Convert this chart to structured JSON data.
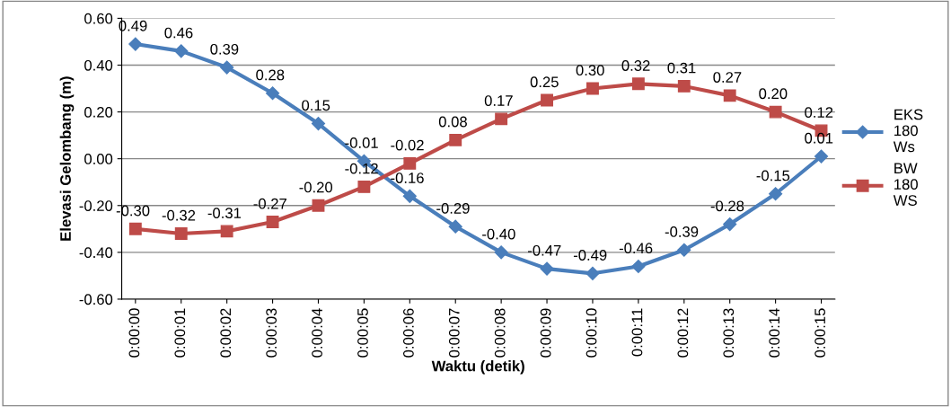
{
  "chart_data": {
    "type": "line",
    "xlabel": "Waktu (detik)",
    "ylabel": "Elevasi Gelombang (m)",
    "categories": [
      "0:00:00",
      "0:00:01",
      "0:00:02",
      "0:00:03",
      "0:00:04",
      "0:00:05",
      "0:00:06",
      "0:00:07",
      "0:00:08",
      "0:00:09",
      "0:00:10",
      "0:00:11",
      "0:00:12",
      "0:00:13",
      "0:00:14",
      "0:00:15"
    ],
    "series": [
      {
        "name": "EKS 180 Ws",
        "color": "#4a7ebb",
        "marker": "diamond",
        "values": [
          0.49,
          0.46,
          0.39,
          0.28,
          0.15,
          -0.01,
          -0.16,
          -0.29,
          -0.4,
          -0.47,
          -0.49,
          -0.46,
          -0.39,
          -0.28,
          -0.15,
          0.01
        ],
        "value_labels": [
          "0.49",
          "0.46",
          "0.39",
          "0.28",
          "0.15",
          "-0.01",
          "-0.16",
          "-0.29",
          "-0.40",
          "-0.47",
          "-0.49",
          "-0.46",
          "-0.39",
          "-0.28",
          "-0.15",
          "0.01"
        ]
      },
      {
        "name": "BW 180 WS",
        "color": "#be4b48",
        "marker": "square",
        "values": [
          -0.3,
          -0.32,
          -0.31,
          -0.27,
          -0.2,
          -0.12,
          -0.02,
          0.08,
          0.17,
          0.25,
          0.3,
          0.32,
          0.31,
          0.27,
          0.2,
          0.12
        ],
        "value_labels": [
          "-0.30",
          "-0.32",
          "-0.31",
          "-0.27",
          "-0.20",
          "-0.12",
          "-0.02",
          "0.08",
          "0.17",
          "0.25",
          "0.30",
          "0.32",
          "0.31",
          "0.27",
          "0.20",
          "0.12"
        ]
      }
    ],
    "ylim": [
      -0.6,
      0.6
    ],
    "yticks": [
      {
        "value": -0.6,
        "label": "-0.60"
      },
      {
        "value": -0.4,
        "label": "-0.40"
      },
      {
        "value": -0.2,
        "label": "-0.20"
      },
      {
        "value": 0,
        "label": "0.00"
      },
      {
        "value": 0.2,
        "label": "0.20"
      },
      {
        "value": 0.4,
        "label": "0.40"
      },
      {
        "value": 0.6,
        "label": "0.60"
      }
    ],
    "grid": "y",
    "legend": "right"
  }
}
